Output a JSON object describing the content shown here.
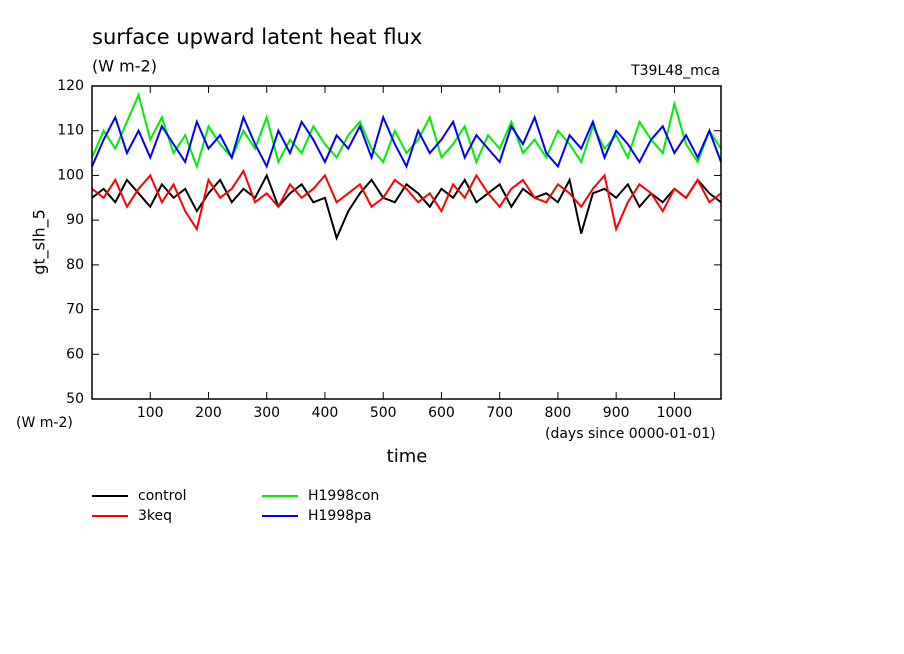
{
  "chart_data": {
    "type": "line",
    "title": "surface upward latent heat flux",
    "subtitle": "(W m-2)",
    "run_label": "T39L48_mca",
    "ylabel": "gt_slh_5",
    "y_unit": "(W m-2)",
    "xlabel": "time",
    "x_unit": "(days since 0000-01-01)",
    "x": [
      0,
      20,
      40,
      60,
      80,
      100,
      120,
      140,
      160,
      180,
      200,
      220,
      240,
      260,
      280,
      300,
      320,
      340,
      360,
      380,
      400,
      420,
      440,
      460,
      480,
      500,
      520,
      540,
      560,
      580,
      600,
      620,
      640,
      660,
      680,
      700,
      720,
      740,
      760,
      780,
      800,
      820,
      840,
      860,
      880,
      900,
      920,
      940,
      960,
      980,
      1000,
      1020,
      1040,
      1060,
      1080
    ],
    "series": [
      {
        "name": "control",
        "color": "#000000",
        "values": [
          95,
          97,
          94,
          99,
          96,
          93,
          98,
          95,
          97,
          92,
          96,
          99,
          94,
          97,
          95,
          100,
          93,
          96,
          98,
          94,
          95,
          86,
          92,
          96,
          99,
          95,
          94,
          98,
          96,
          93,
          97,
          95,
          99,
          94,
          96,
          98,
          93,
          97,
          95,
          96,
          94,
          99,
          87,
          96,
          97,
          95,
          98,
          93,
          96,
          94,
          97,
          95,
          99,
          96,
          94
        ]
      },
      {
        "name": "3keq",
        "color": "#ff0000",
        "values": [
          97,
          95,
          99,
          93,
          97,
          100,
          94,
          98,
          92,
          88,
          99,
          95,
          97,
          101,
          94,
          96,
          93,
          98,
          95,
          97,
          100,
          94,
          96,
          98,
          93,
          95,
          99,
          97,
          94,
          96,
          92,
          98,
          95,
          100,
          96,
          93,
          97,
          99,
          95,
          94,
          98,
          96,
          93,
          97,
          100,
          88,
          94,
          98,
          96,
          92,
          97,
          95,
          99,
          94,
          96
        ]
      },
      {
        "name": "H1998con",
        "color": "#00ee00",
        "values": [
          104,
          110,
          106,
          112,
          118,
          108,
          113,
          105,
          109,
          102,
          111,
          107,
          104,
          110,
          106,
          113,
          103,
          108,
          105,
          111,
          107,
          104,
          109,
          112,
          106,
          103,
          110,
          105,
          108,
          113,
          104,
          107,
          111,
          103,
          109,
          106,
          112,
          105,
          108,
          104,
          110,
          107,
          103,
          111,
          106,
          109,
          104,
          112,
          108,
          105,
          116,
          107,
          103,
          110,
          106
        ]
      },
      {
        "name": "H1998pa",
        "color": "#0000ff",
        "values": [
          102,
          108,
          113,
          105,
          110,
          104,
          111,
          107,
          103,
          112,
          106,
          109,
          104,
          113,
          107,
          102,
          110,
          105,
          112,
          108,
          103,
          109,
          106,
          111,
          104,
          113,
          107,
          102,
          110,
          105,
          108,
          112,
          104,
          109,
          106,
          103,
          111,
          107,
          113,
          105,
          102,
          109,
          106,
          112,
          104,
          110,
          107,
          103,
          108,
          111,
          105,
          109,
          104,
          110,
          103
        ]
      }
    ],
    "xlim": [
      0,
      1080
    ],
    "xticks": [
      100,
      200,
      300,
      400,
      500,
      600,
      700,
      800,
      900,
      1000
    ],
    "ylim": [
      50,
      120
    ],
    "yticks": [
      50,
      60,
      70,
      80,
      90,
      100,
      110,
      120
    ]
  }
}
